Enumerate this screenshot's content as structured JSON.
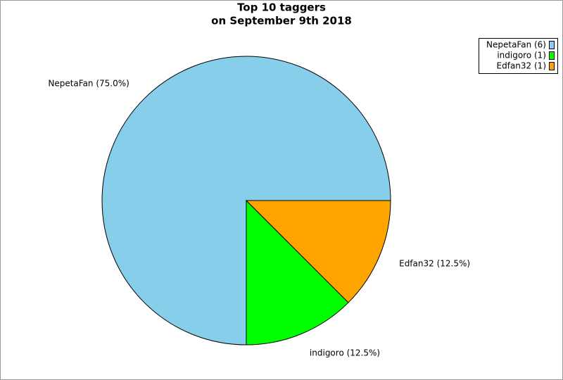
{
  "chart_data": {
    "type": "pie",
    "title": [
      "Top 10 taggers",
      "on September 9th 2018"
    ],
    "categories": [
      "NepetaFan",
      "indigoro",
      "Edfan32"
    ],
    "values": [
      75,
      12.5,
      12.5
    ],
    "value_labels": [
      "NepetaFan (75.0%)",
      "indigoro (12.5%)",
      "Edfan32 (12.5%)"
    ],
    "legend_labels": [
      "NepetaFan (6)",
      "indigoro (1)",
      "Edfan32 (1)"
    ],
    "colors": [
      "#87ceeb",
      "#00ff00",
      "#ffa500"
    ],
    "legend_position": "upper right"
  }
}
